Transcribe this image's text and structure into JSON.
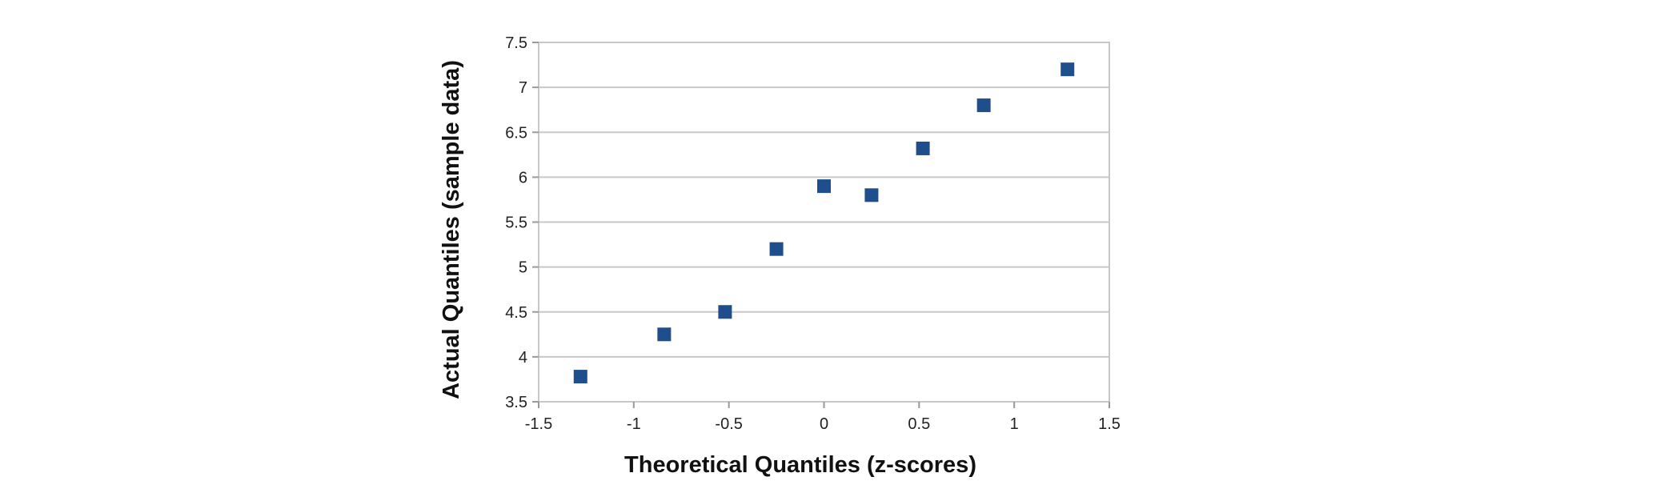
{
  "chart_data": {
    "type": "scatter",
    "title": "",
    "xlabel": "Theoretical Quantiles (z-scores)",
    "ylabel": "Actual Quantiles (sample data)",
    "xlim": [
      -1.5,
      1.5
    ],
    "ylim": [
      3.5,
      7.5
    ],
    "xticks": [
      "-1.5",
      "-1",
      "-0.5",
      "0",
      "0.5",
      "1",
      "1.5"
    ],
    "yticks": [
      "3.5",
      "4",
      "4.5",
      "5",
      "5.5",
      "6",
      "6.5",
      "7",
      "7.5"
    ],
    "grid": "horizontal",
    "legend": "none",
    "marker": "square",
    "marker_color": "#1f4e8c",
    "series": [
      {
        "x": [
          -1.28,
          -0.84,
          -0.52,
          -0.25,
          0.0,
          0.25,
          0.52,
          0.84,
          1.28
        ],
        "y": [
          3.78,
          4.25,
          4.5,
          5.2,
          5.9,
          5.8,
          6.32,
          6.8,
          7.2
        ]
      }
    ]
  }
}
